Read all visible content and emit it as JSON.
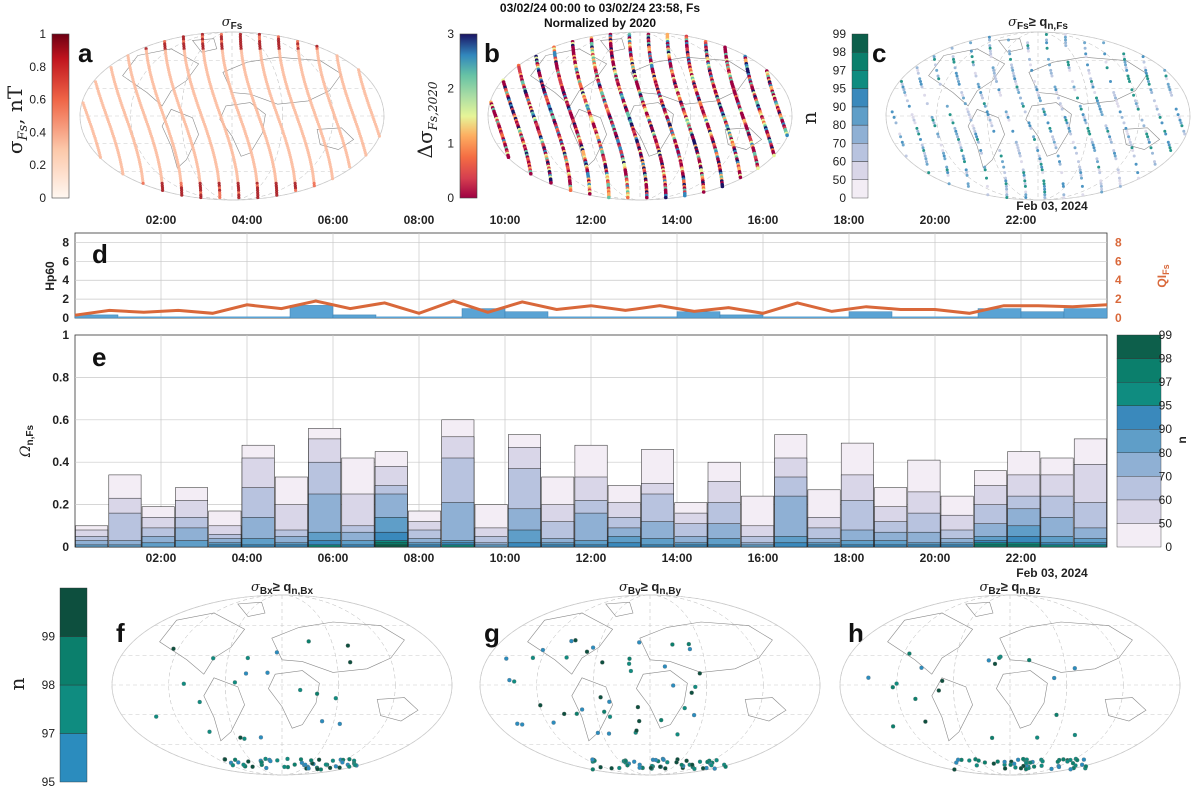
{
  "header": {
    "title_line1": "03/02/24 00:00 to 03/02/24 23:58, Fs",
    "title_line2": "Normalized by 2020"
  },
  "panel_labels": [
    "a",
    "b",
    "c",
    "d",
    "e",
    "f",
    "g",
    "h"
  ],
  "maps": {
    "a": {
      "sigma": "σ",
      "sub": "Fs",
      "colorbar_ticks": [
        "0",
        "0.2",
        "0.4",
        "0.6",
        "0.8",
        "1"
      ],
      "colorbar_range": [
        0,
        1
      ],
      "colorbar_label_main": "σ",
      "colorbar_label_sub": "Fs",
      "colorbar_label_unit": ", nT"
    },
    "b": {
      "colorbar_ticks": [
        "0",
        "1",
        "2",
        "3"
      ],
      "colorbar_range": [
        0,
        3
      ],
      "colorbar_label_main": "Δσ",
      "colorbar_label_sub": "Fs,2020"
    },
    "c": {
      "sigma": "σ",
      "sub": "Fs",
      "ge": "≥ q",
      "ge_sub": "n,Fs",
      "colorbar_ticks": [
        "0",
        "50",
        "60",
        "70",
        "80",
        "90",
        "95",
        "97",
        "98",
        "99"
      ],
      "colorbar_label": "n"
    },
    "f": {
      "sigma": "σ",
      "sub": "Bx",
      "ge": "≥ q",
      "ge_sub": "n,Bx"
    },
    "g": {
      "sigma": "σ",
      "sub": "By",
      "ge": "≥ q",
      "ge_sub": "n,By"
    },
    "h": {
      "sigma": "σ",
      "sub": "Bz",
      "ge": "≥ q",
      "ge_sub": "n,Bz"
    },
    "fgh_colorbar_ticks": [
      "95",
      "97",
      "98",
      "99"
    ],
    "fgh_colorbar_label": "n"
  },
  "colors": {
    "n_bins": [
      "#f3edf5",
      "#d9d6e8",
      "#b8c3df",
      "#8fb0d4",
      "#5f9ec8",
      "#3a89bc",
      "#0f8c80",
      "#0b7f6c",
      "#0d5f4b"
    ],
    "hp60": "#5aa3d4",
    "qi": "#d9683a",
    "map_track_a": "#d4343a",
    "grid": "#c9c9c9"
  },
  "chart_data": [
    {
      "id": "d",
      "type": "bar",
      "title": "",
      "xlabel": "",
      "ylabel": "Hp60",
      "ylim": [
        0,
        9
      ],
      "y_ticks": [
        "0",
        "2",
        "4",
        "6",
        "8"
      ],
      "right_ylabel": "QI",
      "right_ylabel_sub": "Fs",
      "right_ylim": [
        0,
        9
      ],
      "right_y_ticks": [
        "0",
        "2",
        "4",
        "6",
        "8"
      ],
      "x_ticks": [
        "02:00",
        "04:00",
        "06:00",
        "08:00",
        "10:00",
        "12:00",
        "14:00",
        "16:00",
        "18:00",
        "20:00",
        "22:00"
      ],
      "date_label": "Feb 03, 2024",
      "hp60_values": [
        0.333,
        0,
        0,
        0,
        0,
        1.333,
        0.333,
        0,
        0,
        1,
        0.667,
        0,
        0,
        0,
        0.667,
        0.333,
        0,
        0,
        0.667,
        0,
        0,
        1,
        0.667,
        1
      ],
      "qi_values": [
        0.3,
        0.8,
        0.6,
        0.8,
        0.5,
        1.4,
        1.0,
        1.8,
        1.0,
        1.6,
        0.5,
        1.8,
        0.6,
        1.7,
        0.9,
        1.3,
        0.8,
        1.3,
        0.7,
        1.1,
        0.5,
        1.6,
        0.7,
        1.2,
        0.9,
        0.9,
        0.5,
        1.3,
        1.3,
        1.2,
        1.4
      ]
    },
    {
      "id": "e",
      "type": "bar",
      "title": "",
      "xlabel": "",
      "ylabel": "Ω",
      "ylabel_sub": "n,Fs",
      "ylim": [
        0,
        1
      ],
      "y_ticks": [
        "0",
        "0.2",
        "0.4",
        "0.6",
        "0.8",
        "1"
      ],
      "x_ticks": [
        "02:00",
        "04:00",
        "06:00",
        "08:00",
        "10:00",
        "12:00",
        "14:00",
        "16:00",
        "18:00",
        "20:00",
        "22:00"
      ],
      "date_label": "Feb 03, 2024",
      "legend_title": "n",
      "legend_ticks": [
        "0",
        "50",
        "60",
        "70",
        "80",
        "90",
        "95",
        "97",
        "98",
        "99"
      ],
      "n_levels": [
        0,
        50,
        60,
        70,
        80,
        90,
        95,
        97,
        98
      ],
      "series_note": "each column lists cumulative heights for n >= 0,50,60,70,80,90,95,97,98",
      "columns": [
        [
          0.1,
          0.08,
          0.05,
          0.03,
          0.01,
          0,
          0,
          0,
          0
        ],
        [
          0.34,
          0.23,
          0.16,
          0.03,
          0.01,
          0,
          0,
          0,
          0
        ],
        [
          0.19,
          0.14,
          0.09,
          0.05,
          0.02,
          0,
          0,
          0,
          0
        ],
        [
          0.28,
          0.22,
          0.14,
          0.09,
          0.03,
          0,
          0,
          0,
          0
        ],
        [
          0.17,
          0.1,
          0.06,
          0.04,
          0.02,
          0.01,
          0,
          0,
          0
        ],
        [
          0.48,
          0.42,
          0.28,
          0.14,
          0.04,
          0.01,
          0,
          0,
          0
        ],
        [
          0.33,
          0.2,
          0.08,
          0.05,
          0.02,
          0.01,
          0,
          0,
          0
        ],
        [
          0.56,
          0.51,
          0.4,
          0.25,
          0.07,
          0.03,
          0.01,
          0,
          0
        ],
        [
          0.42,
          0.25,
          0.1,
          0.07,
          0.03,
          0.01,
          0,
          0,
          0
        ],
        [
          0.45,
          0.38,
          0.29,
          0.25,
          0.14,
          0.07,
          0.03,
          0.02,
          0.01
        ],
        [
          0.17,
          0.12,
          0.08,
          0.04,
          0.02,
          0.01,
          0,
          0,
          0
        ],
        [
          0.6,
          0.52,
          0.42,
          0.21,
          0.03,
          0.02,
          0.01,
          0,
          0
        ],
        [
          0.2,
          0.09,
          0.05,
          0.02,
          0.01,
          0,
          0,
          0,
          0
        ],
        [
          0.53,
          0.47,
          0.37,
          0.18,
          0.08,
          0.02,
          0,
          0,
          0
        ],
        [
          0.33,
          0.2,
          0.12,
          0.04,
          0.02,
          0.01,
          0,
          0,
          0
        ],
        [
          0.48,
          0.33,
          0.22,
          0.16,
          0.03,
          0.01,
          0,
          0,
          0
        ],
        [
          0.29,
          0.21,
          0.14,
          0.09,
          0.05,
          0.02,
          0,
          0,
          0
        ],
        [
          0.46,
          0.3,
          0.25,
          0.12,
          0.04,
          0.01,
          0,
          0,
          0
        ],
        [
          0.21,
          0.16,
          0.11,
          0.05,
          0.02,
          0.01,
          0,
          0,
          0
        ],
        [
          0.4,
          0.31,
          0.21,
          0.11,
          0.04,
          0.01,
          0,
          0,
          0
        ],
        [
          0.24,
          0.1,
          0.05,
          0.02,
          0.01,
          0,
          0,
          0,
          0
        ],
        [
          0.53,
          0.42,
          0.33,
          0.24,
          0.05,
          0.02,
          0,
          0,
          0
        ],
        [
          0.27,
          0.14,
          0.09,
          0.04,
          0.02,
          0.01,
          0,
          0,
          0
        ],
        [
          0.49,
          0.34,
          0.22,
          0.08,
          0.03,
          0.01,
          0,
          0,
          0
        ],
        [
          0.28,
          0.19,
          0.12,
          0.07,
          0.03,
          0.01,
          0,
          0,
          0
        ],
        [
          0.41,
          0.26,
          0.16,
          0.07,
          0.02,
          0.01,
          0,
          0,
          0
        ],
        [
          0.24,
          0.15,
          0.08,
          0.04,
          0.02,
          0.01,
          0,
          0,
          0
        ],
        [
          0.36,
          0.29,
          0.2,
          0.11,
          0.05,
          0.03,
          0.02,
          0.01,
          0
        ],
        [
          0.45,
          0.34,
          0.24,
          0.18,
          0.1,
          0.05,
          0.02,
          0.01,
          0
        ],
        [
          0.42,
          0.34,
          0.24,
          0.14,
          0.05,
          0.02,
          0.01,
          0,
          0
        ],
        [
          0.51,
          0.39,
          0.21,
          0.09,
          0.04,
          0.02,
          0.01,
          0,
          0
        ]
      ]
    }
  ]
}
